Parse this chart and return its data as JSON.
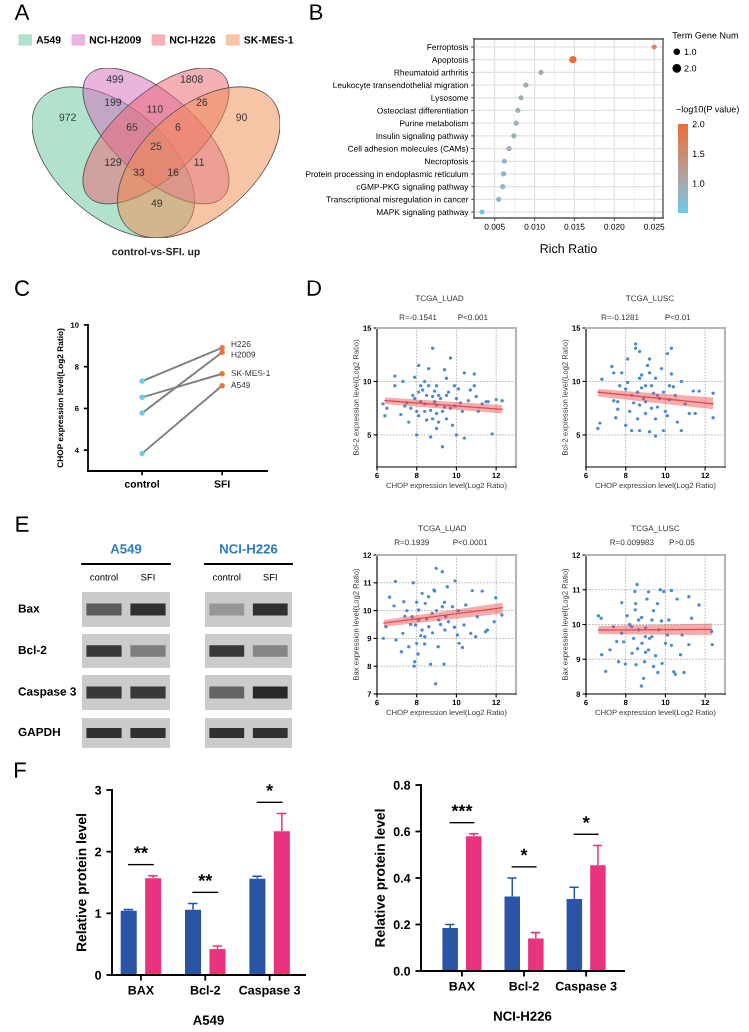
{
  "chart_data": [
    {
      "type": "other",
      "series": [
        {
          "name": "A549",
          "color": "#b2e2ce"
        },
        {
          "name": "NCI-H2009",
          "color": "#e9b4de"
        },
        {
          "name": "NCI-H226",
          "color": "#f5b0b5"
        },
        {
          "name": "SK-MES-1",
          "color": "#f8c4a6"
        }
      ],
      "legend": "top",
      "xlabel": "control-vs-SFI. up",
      "annotations": [
        "A",
        "972",
        "499",
        "1808",
        "90",
        "199",
        "110",
        "26",
        "129",
        "11",
        "49",
        "65",
        "6",
        "33",
        "16",
        "25"
      ]
    },
    {
      "type": "bubble",
      "orientation": "horizontal",
      "categories": [
        "Ferroptosis",
        "Apoptosis",
        "Rheumatoid arthritis",
        "Leukocyte transendothelial migration",
        "Lysosome",
        "Osteoclast differentiation",
        "Purine metabolism",
        "Insulin signaling pathway",
        "Cell adhesion molecules (CAMs)",
        "Necroptosis",
        "Protein processing in endoplasmic reticulum",
        "cGMP-PKG signaling pathway",
        "Transcriptional misregulation in cancer",
        "MAPK signaling pathway"
      ],
      "values": [
        0.025,
        0.0148,
        0.0108,
        0.0089,
        0.0083,
        0.0079,
        0.0077,
        0.0074,
        0.0068,
        0.0062,
        0.0061,
        0.006,
        0.0055,
        0.0034
      ],
      "sizes": [
        1,
        2,
        1,
        1,
        1,
        1,
        1,
        1,
        1,
        1,
        1,
        1,
        1,
        1
      ],
      "size_legend": [
        {
          "value": 1,
          "label": "1.0"
        },
        {
          "value": 2,
          "label": "2.0"
        }
      ],
      "legend_title": "Term Gene Num",
      "cvalues": [
        1.6,
        2.0,
        1.0,
        0.95,
        0.92,
        0.9,
        0.9,
        0.88,
        0.85,
        0.82,
        0.82,
        0.8,
        0.78,
        0.52
      ],
      "clim": [
        0.5,
        2.0
      ],
      "cticks": [
        {
          "value": 1,
          "label": "1.0"
        },
        {
          "value": 1.5,
          "label": "1.5"
        },
        {
          "value": 2,
          "label": "2.0"
        }
      ],
      "clabel": "−log10(P value)",
      "xlabel": "Rich Ratio",
      "xlim": [
        0.0024,
        0.0261
      ],
      "xticks": [
        {
          "value": 0.005,
          "label": "0.005"
        },
        {
          "value": 0.01,
          "label": "0.010"
        },
        {
          "value": 0.015,
          "label": "0.015"
        },
        {
          "value": 0.02,
          "label": "0.020"
        },
        {
          "value": 0.025,
          "label": "0.025"
        }
      ],
      "grid": true,
      "annotations": [
        "B"
      ]
    },
    {
      "type": "line",
      "categories": [
        "control",
        "SFI"
      ],
      "series": [
        {
          "name": "H226",
          "color": "#808080",
          "colors": [
            "#6dcbea",
            "#e8773d"
          ],
          "values": [
            7.31,
            8.91
          ]
        },
        {
          "name": "H2009",
          "color": "#808080",
          "colors": [
            "#6dcbea",
            "#e8773d"
          ],
          "values": [
            5.78,
            8.69
          ]
        },
        {
          "name": "SK-MES-1",
          "color": "#808080",
          "colors": [
            "#6dcbea",
            "#e8773d"
          ],
          "values": [
            6.53,
            7.66
          ]
        },
        {
          "name": "A549",
          "color": "#808080",
          "colors": [
            "#6dcbea",
            "#e8773d"
          ],
          "values": [
            3.84,
            7.09
          ]
        }
      ],
      "ylim": [
        3,
        10
      ],
      "yticks": [
        4,
        6,
        8,
        10
      ],
      "ylabel": "CHOP expression level(Log2 Ratio)",
      "marker": "circle",
      "annotations": [
        "C"
      ]
    },
    {
      "type": "scatter",
      "title": "TCGA_LUAD",
      "annotations": [
        "D",
        "R=-0.1541",
        "P<0.001"
      ],
      "xlabel": "CHOP expression level(Log2 Ratio)",
      "ylabel": "Bcl-2 expression level(Log2 Ratio)",
      "xlim": [
        6,
        13
      ],
      "xticks": [
        6,
        8,
        10,
        12
      ],
      "ylim": [
        2,
        15
      ],
      "yticks": [
        5,
        10,
        15
      ],
      "grid": true,
      "series": [
        {
          "type": "scatter",
          "marker": "circle",
          "color": "#4a8bd5",
          "x": [
            6.3,
            6.4,
            6.5,
            6.9,
            6.9,
            7.2,
            7.3,
            7.6,
            7.8,
            7.9,
            8.1,
            8.0,
            8.1,
            8.2,
            8.4,
            8.5,
            8.6,
            8.7,
            8.8,
            8.9,
            9.0,
            9.1,
            9.3,
            9.4,
            9.5,
            9.5,
            9.7,
            9.7,
            9.8,
            9.9,
            10.0,
            10.0,
            10.1,
            10.3,
            10.4,
            10.4,
            10.6,
            10.7,
            10.9,
            10.9,
            11.0,
            11.1,
            11.3,
            11.5,
            11.6,
            11.8,
            12.0,
            12.3,
            7.9,
            8.4,
            9.0,
            9.3,
            8.1,
            8.8,
            9.1,
            9.5,
            8.6,
            7.5,
            7.7,
            8.0,
            8.2,
            8.3,
            8.5,
            8.7,
            8.9,
            9.0,
            9.2,
            9.4,
            9.6,
            9.9,
            10.2,
            8.4,
            9.0,
            7.4,
            8.8
          ],
          "values": [
            7.9,
            6.8,
            7.5,
            10.5,
            9.6,
            6.9,
            10.0,
            6.2,
            8.7,
            10.4,
            11.5,
            5.0,
            9.0,
            9.6,
            7.2,
            8.7,
            11.2,
            4.8,
            13.1,
            8.1,
            9.6,
            6.2,
            3.9,
            11.1,
            8.7,
            10.3,
            12.2,
            7.5,
            5.9,
            9.6,
            8.4,
            5.0,
            9.3,
            7.2,
            4.7,
            10.8,
            8.2,
            9.2,
            9.6,
            10.7,
            8.6,
            7.2,
            7.9,
            8.1,
            8.1,
            5.1,
            8.3,
            8.2,
            8.4,
            7.9,
            7.8,
            7.2,
            6.8,
            6.5,
            8.7,
            6.5,
            9.6,
            8.0,
            7.5,
            7.2,
            8.1,
            9.2,
            6.4,
            7.3,
            9.1,
            7.0,
            8.4,
            7.6,
            9.0,
            7.7,
            8.0,
            10.0,
            5.6,
            7.7,
            8.6
          ]
        },
        {
          "type": "line",
          "marker": "none",
          "color": "#e8474a",
          "x": [
            6.4,
            12.3
          ],
          "values": [
            8.2,
            7.4
          ],
          "lower": [
            7.9,
            7.0
          ],
          "upper": [
            8.5,
            7.8
          ]
        }
      ]
    },
    {
      "type": "scatter",
      "title": "TCGA_LUSC",
      "annotations": [
        "R=-0.1281",
        "P<0.01"
      ],
      "xlabel": "CHOP expression level(Log2 Ratio)",
      "ylabel": "Bcl-2 expression level(Log2 Ratio)",
      "xlim": [
        6,
        13
      ],
      "xticks": [
        6,
        8,
        10,
        12
      ],
      "ylim": [
        2,
        15
      ],
      "yticks": [
        5,
        10,
        15
      ],
      "grid": true,
      "series": [
        {
          "type": "scatter",
          "marker": "circle",
          "color": "#4a8bd5",
          "x": [
            6.6,
            6.7,
            6.8,
            7.3,
            7.4,
            7.4,
            7.5,
            7.7,
            7.8,
            8.0,
            8.1,
            8.2,
            8.3,
            8.5,
            8.5,
            8.7,
            8.6,
            8.7,
            8.8,
            9.0,
            9.2,
            9.2,
            9.3,
            9.5,
            9.5,
            9.6,
            9.8,
            9.9,
            10.0,
            10.1,
            10.2,
            10.3,
            10.3,
            10.5,
            10.6,
            10.8,
            10.8,
            11.0,
            11.2,
            11.4,
            11.5,
            11.7,
            12.4,
            12.4,
            8.3,
            8.7,
            9.0,
            9.3,
            9.7,
            8.7,
            7.6,
            8.0,
            8.1,
            8.4,
            8.8,
            9.0,
            9.2,
            9.4,
            9.6,
            9.9,
            10.2,
            8.6,
            9.1,
            10.4,
            7.6,
            8.9,
            9.5,
            10.1
          ],
          "values": [
            5.6,
            6.1,
            10.2,
            11.4,
            10.8,
            8.2,
            6.6,
            9.6,
            10.8,
            5.9,
            12.1,
            7.2,
            5.4,
            13.5,
            13.1,
            12.8,
            9.0,
            5.4,
            10.6,
            8.1,
            12.1,
            5.3,
            9.6,
            6.5,
            4.9,
            8.7,
            11.2,
            5.4,
            7.2,
            12.6,
            9.6,
            13.1,
            10.7,
            8.7,
            6.2,
            5.4,
            10.0,
            7.9,
            7.0,
            9.1,
            7.0,
            9.1,
            8.9,
            6.6,
            8.7,
            7.8,
            9.6,
            7.5,
            8.4,
            10.3,
            8.1,
            9.3,
            9.9,
            8.0,
            9.4,
            7.0,
            10.8,
            8.9,
            7.6,
            9.0,
            8.3,
            6.5,
            11.5,
            9.5,
            7.4,
            8.4,
            10.3,
            6.8
          ]
        },
        {
          "type": "line",
          "marker": "none",
          "color": "#e8474a",
          "x": [
            6.6,
            12.4
          ],
          "values": [
            9.0,
            7.9
          ],
          "lower": [
            8.6,
            7.4
          ],
          "upper": [
            9.3,
            8.5
          ]
        }
      ]
    },
    {
      "type": "other",
      "categories": [
        "control",
        "SFI"
      ],
      "y_categories": [
        "Bax",
        "Bcl-2",
        "Caspase 3",
        "GAPDH"
      ],
      "annotations": [
        "E",
        "A549",
        "NCI-H226"
      ]
    },
    {
      "type": "scatter",
      "title": "TCGA_LUAD",
      "annotations": [
        "R=0.1939",
        "P<0.0001"
      ],
      "xlabel": "CHOP expression level(Log2 Ratio)",
      "ylabel": "Bax expression level(Log2 Ratio)",
      "xlim": [
        6,
        13
      ],
      "xticks": [
        6,
        8,
        10,
        12
      ],
      "ylim": [
        7,
        12
      ],
      "yticks": [
        7,
        8,
        9,
        10,
        11,
        12
      ],
      "grid": true,
      "series": [
        {
          "type": "scatter",
          "marker": "circle",
          "color": "#4a8bd5",
          "x": [
            6.32,
            6.45,
            6.63,
            6.86,
            6.93,
            6.96,
            7.23,
            7.3,
            7.35,
            7.6,
            7.82,
            7.87,
            7.9,
            8.0,
            8.07,
            8.1,
            8.27,
            8.41,
            8.7,
            8.87,
            8.95,
            8.98,
            9.08,
            9.29,
            9.37,
            9.42,
            9.54,
            9.8,
            9.93,
            10.05,
            10.13,
            10.3,
            10.38,
            10.47,
            10.72,
            10.8,
            10.97,
            11.05,
            11.3,
            11.47,
            11.56,
            11.9,
            11.98,
            12.29,
            7.77,
            8.1,
            8.43,
            8.78,
            9.12,
            8.61,
            7.94,
            9.29,
            8.27,
            9.46,
            7.5,
            7.7,
            8.0,
            8.2,
            8.5,
            8.6,
            8.8,
            9.0,
            9.2,
            9.4,
            9.6,
            9.9,
            8.4,
            7.4,
            10.1,
            8.9
          ],
          "values": [
            9.0,
            9.42,
            10.48,
            10.17,
            11.05,
            8.94,
            8.52,
            9.18,
            10.32,
            8.7,
            11.0,
            8.0,
            8.16,
            8.82,
            8.44,
            9.66,
            10.62,
            9.06,
            8.07,
            10.74,
            7.37,
            11.52,
            8.7,
            11.4,
            8.07,
            9.3,
            10.86,
            10.14,
            11.07,
            9.12,
            8.82,
            8.67,
            9.48,
            10.2,
            9.18,
            10.72,
            9.06,
            9.78,
            10.7,
            9.24,
            9.3,
            9.6,
            10.46,
            9.84,
            9.78,
            10.02,
            10.26,
            9.9,
            9.66,
            9.42,
            9.48,
            10.14,
            9.3,
            9.78,
            10.0,
            9.5,
            10.3,
            9.1,
            9.7,
            10.5,
            9.2,
            10.0,
            9.5,
            10.3,
            9.6,
            9.4,
            8.8,
            9.8,
            10.0,
            10.7
          ]
        },
        {
          "type": "line",
          "marker": "none",
          "color": "#e8474a",
          "x": [
            6.35,
            12.32
          ],
          "values": [
            9.55,
            10.1
          ],
          "lower": [
            9.42,
            9.9
          ],
          "upper": [
            9.66,
            10.28
          ]
        }
      ]
    },
    {
      "type": "scatter",
      "title": "TCGA_LUSC",
      "annotations": [
        "R=0.009983",
        "P>0.05"
      ],
      "xlabel": "CHOP expression level(Log2 Ratio)",
      "ylabel": "Bax expression level(Log2 Ratio)",
      "xlim": [
        6,
        13
      ],
      "xticks": [
        6,
        8,
        10,
        12
      ],
      "ylim": [
        8,
        12
      ],
      "yticks": [
        8,
        9,
        10,
        11,
        12
      ],
      "grid": true,
      "series": [
        {
          "type": "scatter",
          "marker": "circle",
          "color": "#4a8bd5",
          "x": [
            6.62,
            6.76,
            6.79,
            6.99,
            7.21,
            7.38,
            7.55,
            7.64,
            7.8,
            7.98,
            8.07,
            8.32,
            8.46,
            8.52,
            8.57,
            8.65,
            8.79,
            8.9,
            8.95,
            9.07,
            9.15,
            9.32,
            9.4,
            9.62,
            9.74,
            9.83,
            9.92,
            10.0,
            10.3,
            10.42,
            10.5,
            10.59,
            10.76,
            10.84,
            10.94,
            11.18,
            11.18,
            11.32,
            11.69,
            12.33,
            12.36,
            8.65,
            8.99,
            8.82,
            9.32,
            8.3,
            9.66,
            8.48,
            9.15,
            7.8,
            10.17,
            8.2,
            8.4,
            8.6,
            8.8,
            9.0,
            9.2,
            9.4,
            9.5,
            9.8,
            10.1,
            8.5,
            9.0,
            10.3,
            7.9,
            9.6
          ],
          "values": [
            10.25,
            10.18,
            9.13,
            8.65,
            9.27,
            9.94,
            9.51,
            8.93,
            10.63,
            8.86,
            10.25,
            9.17,
            10.95,
            8.84,
            11.15,
            10.13,
            8.23,
            8.45,
            8.93,
            10.73,
            10.94,
            9.65,
            8.79,
            8.62,
            11.0,
            8.88,
            10.95,
            9.46,
            10.98,
            8.64,
            8.57,
            10.73,
            9.13,
            9.7,
            8.62,
            10.8,
            9.42,
            10.18,
            10.56,
            9.8,
            9.42,
            9.85,
            9.65,
            9.46,
            10.13,
            9.94,
            9.85,
            10.42,
            9.27,
            9.75,
            10.13,
            10.0,
            9.6,
            9.3,
            10.2,
            9.9,
            9.6,
            10.4,
            9.1,
            10.1,
            9.7,
            10.6,
            9.2,
            9.4,
            9.5,
            10.6
          ]
        },
        {
          "type": "line",
          "marker": "none",
          "color": "#e8474a",
          "x": [
            6.63,
            12.33
          ],
          "values": [
            9.84,
            9.86
          ],
          "lower": [
            9.73,
            9.69
          ],
          "upper": [
            9.96,
            10.03
          ]
        }
      ]
    },
    {
      "type": "bar",
      "categories": [
        "BAX",
        "Bcl-2",
        "Caspase 3"
      ],
      "series": [
        {
          "color": "#2a55a5",
          "values": [
            1.04,
            1.06,
            1.56
          ],
          "errors": [
            [
              1.04,
              1.06
            ],
            [
              1.06,
              1.16
            ],
            [
              1.56,
              1.6
            ]
          ]
        },
        {
          "color": "#e8347e",
          "values": [
            1.57,
            0.42,
            2.33
          ],
          "errors": [
            [
              1.57,
              1.61
            ],
            [
              0.42,
              0.47
            ],
            [
              2.33,
              2.62
            ]
          ]
        }
      ],
      "ylim": [
        0,
        3
      ],
      "yticks": [
        0,
        1,
        2,
        3
      ],
      "ylabel": "Relative protein level",
      "xlabel": "A549",
      "annotations": [
        "F",
        "**",
        "**",
        "*"
      ]
    },
    {
      "type": "bar",
      "categories": [
        "BAX",
        "Bcl-2",
        "Caspase 3"
      ],
      "series": [
        {
          "color": "#2a55a5",
          "values": [
            0.185,
            0.32,
            0.31
          ],
          "errors": [
            [
              0.185,
              0.2
            ],
            [
              0.32,
              0.4
            ],
            [
              0.31,
              0.36
            ]
          ]
        },
        {
          "color": "#e8347e",
          "values": [
            0.58,
            0.14,
            0.455
          ],
          "errors": [
            [
              0.58,
              0.59
            ],
            [
              0.14,
              0.165
            ],
            [
              0.455,
              0.54
            ]
          ]
        }
      ],
      "ylim": [
        0,
        0.8
      ],
      "yticks": [
        {
          "value": 0,
          "label": "0.0"
        },
        {
          "value": 0.2,
          "label": "0.2"
        },
        {
          "value": 0.4,
          "label": "0.4"
        },
        {
          "value": 0.6,
          "label": "0.6"
        },
        {
          "value": 0.8,
          "label": "0.8"
        }
      ],
      "ylabel": "Relative protein level",
      "xlabel": "NCI-H226",
      "annotations": [
        "***",
        "*",
        "*"
      ]
    }
  ]
}
